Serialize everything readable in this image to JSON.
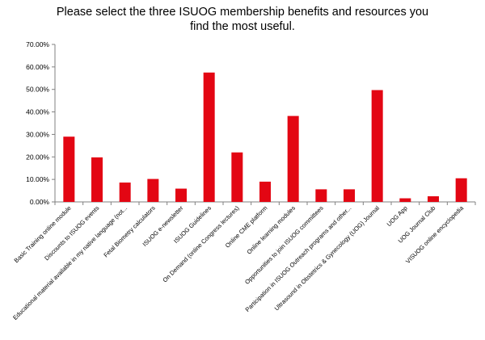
{
  "chart_data": {
    "type": "bar",
    "title_lines": [
      "Please select the three ISUOG membership benefits and resources you",
      "find the most useful."
    ],
    "categories": [
      "Basic Training online module",
      "Discounts to ISUOG events",
      "Educational material available in my native language (not...",
      "Fetal Biometry calculators",
      "ISUOG e-newsletter",
      "ISUOG Guidelines",
      "On Demand (online Congress lectures)",
      "Online CME platform",
      "Online learning modules",
      "Opportunities to join ISUOG committees",
      "Participation in ISUOG Outreach programs and other...",
      "Ultrasound in Obstetrics & Gynecology (UOG) Journal",
      "UOG App",
      "UOG Journal Club",
      "VISUOG online encyclopedia"
    ],
    "values": [
      29.0,
      19.8,
      8.6,
      10.2,
      5.9,
      57.5,
      22.0,
      9.0,
      38.2,
      5.6,
      5.6,
      49.7,
      1.6,
      2.5,
      10.5
    ],
    "ylim": [
      0,
      70
    ],
    "yticks": [
      "0.00%",
      "10.00%",
      "20.00%",
      "30.00%",
      "40.00%",
      "50.00%",
      "60.00%",
      "70.00%"
    ],
    "bar_color": "#e30613",
    "grid": false
  }
}
